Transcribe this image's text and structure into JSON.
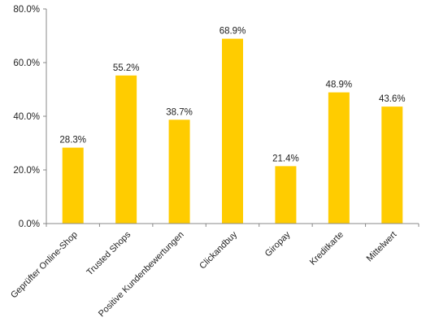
{
  "chart_data": {
    "type": "bar",
    "categories": [
      "Geprüfter Online-Shop",
      "Trusted Shops",
      "Positive Kundenbewertungen",
      "Clickandbuy",
      "Giropay",
      "Kreditkarte",
      "Mittelwert"
    ],
    "values": [
      28.3,
      55.2,
      38.7,
      68.9,
      21.4,
      48.9,
      43.6
    ],
    "value_labels": [
      "28.3%",
      "55.2%",
      "38.7%",
      "68.9%",
      "21.4%",
      "48.9%",
      "43.6%"
    ],
    "y_ticks": [
      0,
      20,
      40,
      60,
      80
    ],
    "y_tick_labels": [
      "0.0%",
      "20.0%",
      "40.0%",
      "60.0%",
      "80.0%"
    ],
    "ylim": [
      0,
      80
    ],
    "title": "",
    "xlabel": "",
    "ylabel": "",
    "grid": false,
    "bar_color": "#FFCC00",
    "axis_color": "#888888"
  }
}
